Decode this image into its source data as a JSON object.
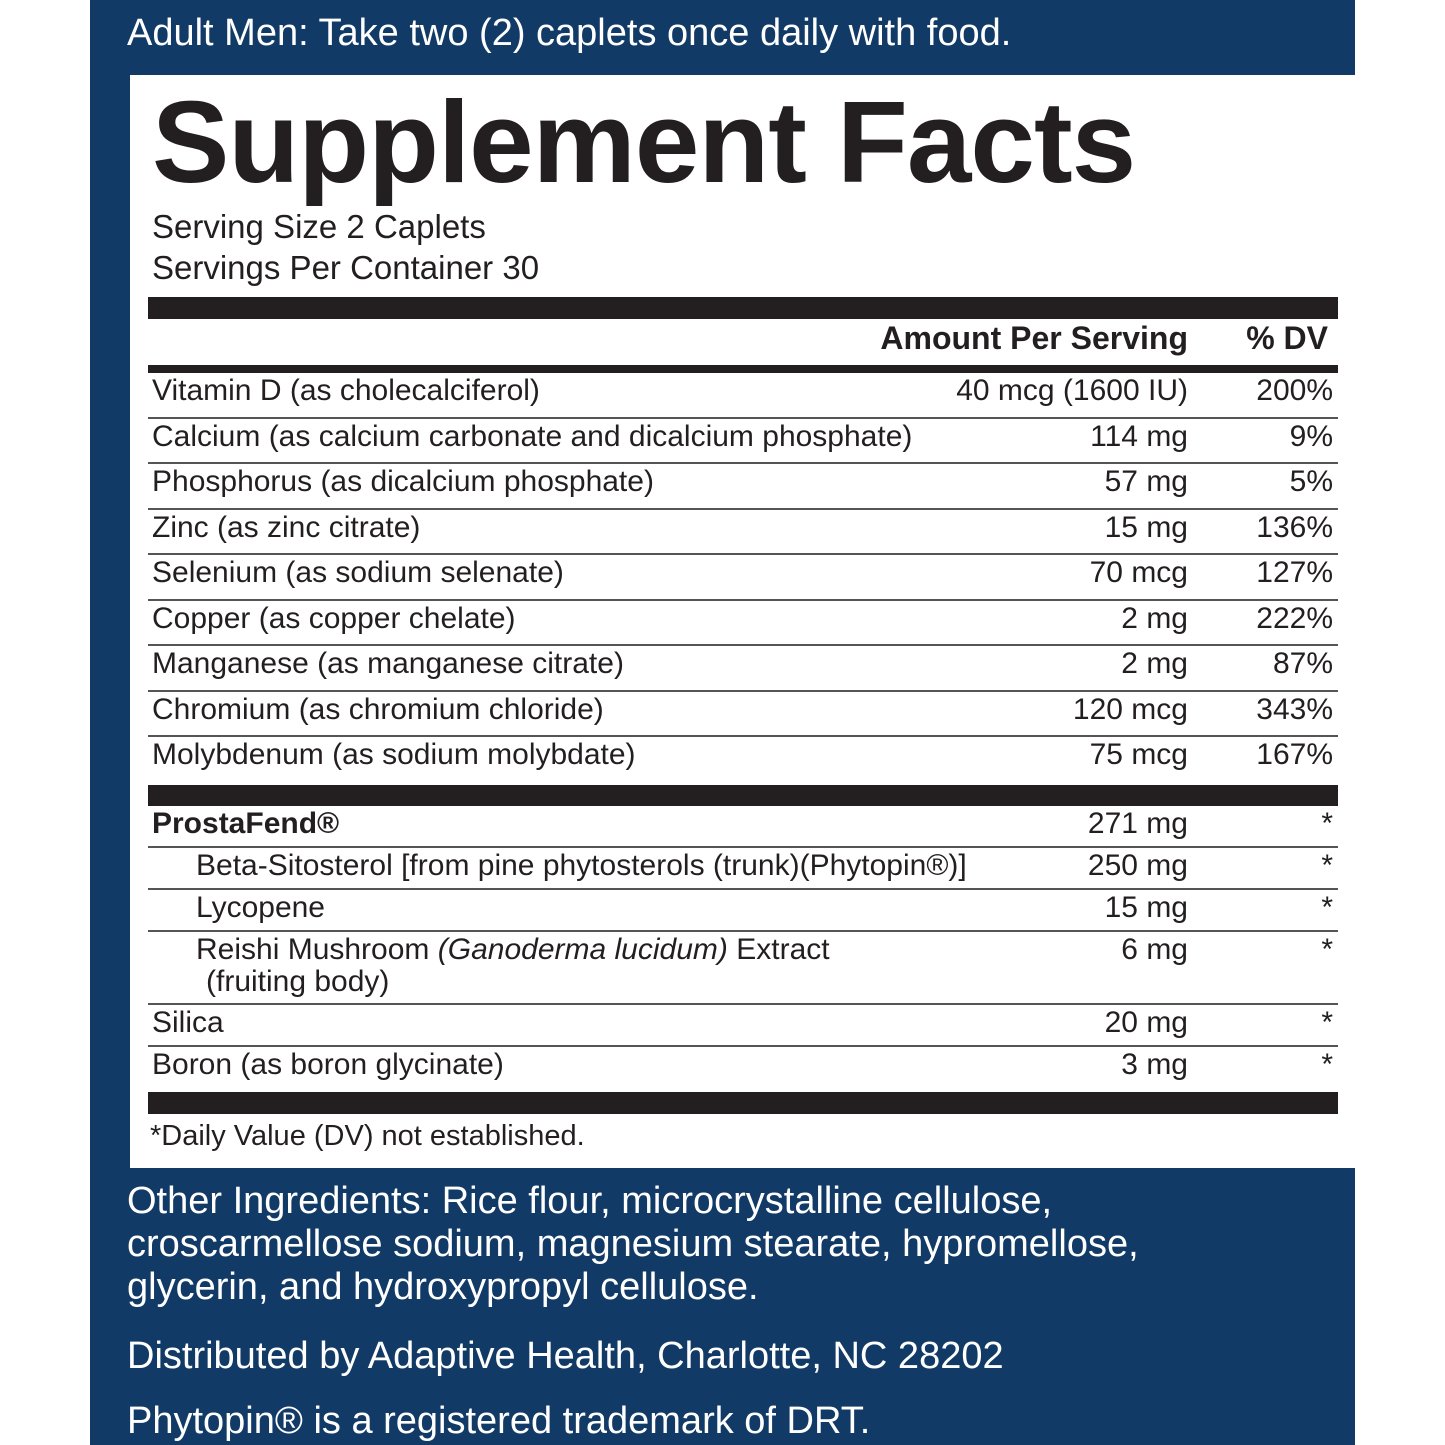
{
  "directions": "Adult Men: Take two (2) caplets once daily with food.",
  "panel": {
    "title": "Supplement Facts",
    "serving_size": "Serving Size 2 Caplets",
    "servings_per_container": "Servings Per Container 30",
    "columns": {
      "amount": "Amount Per Serving",
      "dv": "% DV"
    },
    "rows": [
      {
        "name": "Vitamin D (as cholecalciferol)",
        "amount": "40 mcg (1600 IU)",
        "dv": "200%"
      },
      {
        "name": "Calcium (as calcium carbonate and dicalcium phosphate)",
        "amount": "114 mg",
        "dv": "9%"
      },
      {
        "name": "Phosphorus (as dicalcium phosphate)",
        "amount": "57 mg",
        "dv": "5%"
      },
      {
        "name": "Zinc (as zinc citrate)",
        "amount": "15 mg",
        "dv": "136%"
      },
      {
        "name": "Selenium (as sodium selenate)",
        "amount": "70 mcg",
        "dv": "127%"
      },
      {
        "name": "Copper (as copper chelate)",
        "amount": "2 mg",
        "dv": "222%"
      },
      {
        "name": "Manganese (as manganese citrate)",
        "amount": "2 mg",
        "dv": "87%"
      },
      {
        "name": "Chromium (as chromium chloride)",
        "amount": "120 mcg",
        "dv": "343%"
      },
      {
        "name": "Molybdenum (as sodium molybdate)",
        "amount": "75 mcg",
        "dv": "167%"
      }
    ],
    "blend_rows": [
      {
        "name": "ProstaFend®",
        "amount": "271 mg",
        "dv": "*",
        "bold": true
      },
      {
        "name": "Beta-Sitosterol [from pine phytosterols (trunk)(Phytopin®)]",
        "amount": "250 mg",
        "dv": "*",
        "indent": true
      },
      {
        "name": "Lycopene",
        "amount": "15 mg",
        "dv": "*",
        "indent": true
      },
      {
        "name": "Reishi Mushroom",
        "name_italic": "(Ganoderma lucidum)",
        "name_suffix": "Extract",
        "name_line2": "(fruiting body)",
        "amount": "6 mg",
        "dv": "*",
        "indent": true
      },
      {
        "name": "Silica",
        "amount": "20 mg",
        "dv": "*"
      },
      {
        "name": "Boron (as boron glycinate)",
        "amount": "3 mg",
        "dv": "*"
      }
    ],
    "footnote": "*Daily Value (DV) not established."
  },
  "other_ingredients": [
    "Other Ingredients: Rice flour, microcrystalline cellulose,",
    "croscarmellose sodium, magnesium stearate, hypromellose,",
    "glycerin, and hydroxypropyl cellulose."
  ],
  "distributor": "Distributed by Adaptive Health, Charlotte, NC 28202",
  "trademark": "Phytopin® is a registered trademark of DRT."
}
